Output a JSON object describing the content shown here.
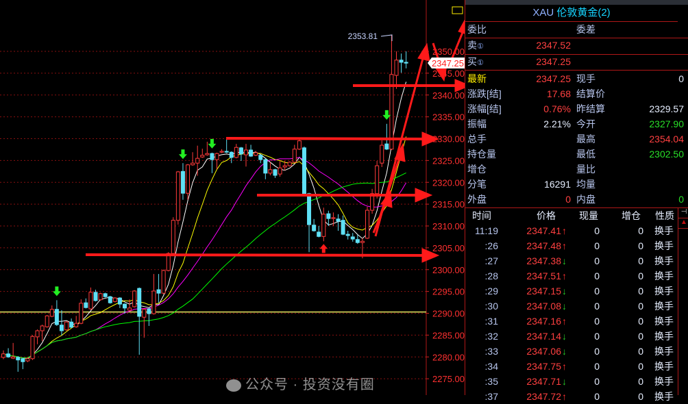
{
  "chart": {
    "price_axis": {
      "min": 2275,
      "max": 2350,
      "step": 5,
      "labels": [
        "2350.00",
        "2345.00",
        "2340.00",
        "2335.00",
        "2330.00",
        "2325.00",
        "2320.00",
        "2315.00",
        "2310.00",
        "2305.00",
        "2300.00",
        "2295.00",
        "2290.00",
        "2285.00",
        "2280.00",
        "2275.00"
      ]
    },
    "current_price_tag": "2347.25",
    "high_label": "2353.81",
    "horizontal_line_price": 2290.3,
    "colors": {
      "up": "#ff3b3b",
      "down": "#5fe0f5",
      "grid": "#8a1010",
      "ma5": "#ffffff",
      "ma10": "#ffff00",
      "ma20": "#ff00ff",
      "ma40": "#00ff00",
      "annotation": "#ff1a1a",
      "signal_buy": "#ff1a1a",
      "signal_sell": "#22ee22"
    },
    "candles": [
      [
        2279.9,
        2281.5,
        2279.5,
        2280.7
      ],
      [
        2280.7,
        2282.0,
        2279.8,
        2280.0
      ],
      [
        2279.7,
        2283.2,
        2279.5,
        2280.0
      ],
      [
        2279.9,
        2280.2,
        2276.6,
        2279.3
      ],
      [
        2279.6,
        2279.8,
        2277.2,
        2278.9
      ],
      [
        2279.1,
        2279.9,
        2278.8,
        2279.6
      ],
      [
        2279.6,
        2285.0,
        2279.3,
        2284.7
      ],
      [
        2284.6,
        2286.3,
        2282.9,
        2286.0
      ],
      [
        2286.0,
        2287.4,
        2283.6,
        2287.1
      ],
      [
        2286.9,
        2289.6,
        2286.7,
        2289.4
      ],
      [
        2289.3,
        2291.8,
        2289.1,
        2290.9
      ],
      [
        2290.9,
        2293.0,
        2287.1,
        2287.4
      ],
      [
        2287.3,
        2290.7,
        2284.9,
        2286.0
      ],
      [
        2286.2,
        2288.2,
        2286.0,
        2288.0
      ],
      [
        2288.0,
        2288.8,
        2286.6,
        2286.8
      ],
      [
        2286.9,
        2289.4,
        2286.7,
        2287.7
      ],
      [
        2287.7,
        2293.2,
        2287.5,
        2292.3
      ],
      [
        2292.4,
        2293.4,
        2291.1,
        2291.3
      ],
      [
        2291.0,
        2295.9,
        2290.8,
        2294.8
      ],
      [
        2294.8,
        2295.4,
        2292.7,
        2292.9
      ],
      [
        2293.1,
        2294.7,
        2292.9,
        2294.5
      ],
      [
        2294.5,
        2294.7,
        2293.6,
        2293.8
      ],
      [
        2293.8,
        2294.0,
        2292.2,
        2292.4
      ],
      [
        2292.7,
        2293.7,
        2292.5,
        2293.5
      ],
      [
        2293.5,
        2293.7,
        2291.2,
        2292.1
      ],
      [
        2292.1,
        2292.3,
        2289.9,
        2291.2
      ],
      [
        2290.7,
        2293.2,
        2290.5,
        2291.2
      ],
      [
        2291.5,
        2295.3,
        2291.3,
        2295.1
      ],
      [
        2295.7,
        2295.9,
        2280.5,
        2289.3
      ],
      [
        2289.1,
        2291.1,
        2284.4,
        2290.9
      ],
      [
        2291.0,
        2291.2,
        2287.1,
        2289.9
      ],
      [
        2289.9,
        2299.0,
        2289.7,
        2295.1
      ],
      [
        2295.4,
        2299.0,
        2292.4,
        2294.6
      ],
      [
        2294.6,
        2300.0,
        2294.4,
        2299.8
      ],
      [
        2299.8,
        2304.0,
        2299.6,
        2303.7
      ],
      [
        2303.7,
        2312.0,
        2303.5,
        2311.3
      ],
      [
        2311.3,
        2322.6,
        2310.3,
        2322.4
      ],
      [
        2322.5,
        2324.4,
        2316.0,
        2317.5
      ],
      [
        2317.5,
        2324.2,
        2316.0,
        2324.0
      ],
      [
        2324.0,
        2326.9,
        2323.8,
        2324.4
      ],
      [
        2324.4,
        2328.4,
        2321.5,
        2325.5
      ],
      [
        2325.8,
        2327.7,
        2325.6,
        2326.2
      ],
      [
        2326.3,
        2329.3,
        2326.1,
        2326.6
      ],
      [
        2326.6,
        2326.8,
        2322.1,
        2325.2
      ],
      [
        2325.2,
        2326.8,
        2323.0,
        2326.6
      ],
      [
        2326.9,
        2327.6,
        2326.7,
        2327.1
      ],
      [
        2327.1,
        2330.1,
        2326.7,
        2326.9
      ],
      [
        2326.9,
        2327.1,
        2324.4,
        2325.7
      ],
      [
        2325.7,
        2328.8,
        2325.5,
        2328.0
      ],
      [
        2327.9,
        2328.1,
        2324.9,
        2326.5
      ],
      [
        2326.3,
        2328.8,
        2323.6,
        2327.4
      ],
      [
        2327.4,
        2328.6,
        2325.8,
        2326.0
      ],
      [
        2326.2,
        2327.2,
        2326.0,
        2326.8
      ],
      [
        2326.2,
        2326.4,
        2324.4,
        2325.2
      ],
      [
        2325.2,
        2325.4,
        2320.7,
        2322.1
      ],
      [
        2322.1,
        2324.6,
        2321.6,
        2322.9
      ],
      [
        2322.9,
        2323.1,
        2321.0,
        2321.6
      ],
      [
        2321.9,
        2324.9,
        2321.3,
        2323.3
      ],
      [
        2323.5,
        2324.9,
        2322.7,
        2323.8
      ],
      [
        2323.8,
        2324.8,
        2323.6,
        2324.6
      ],
      [
        2324.6,
        2328.6,
        2324.4,
        2327.6
      ],
      [
        2327.6,
        2329.9,
        2327.4,
        2329.5
      ],
      [
        2327.9,
        2328.2,
        2316.9,
        2317.1
      ],
      [
        2317.4,
        2317.6,
        2304.0,
        2310.3
      ],
      [
        2310.2,
        2311.6,
        2308.7,
        2308.9
      ],
      [
        2308.6,
        2310.0,
        2307.4,
        2307.6
      ],
      [
        2307.6,
        2314.2,
        2306.5,
        2312.7
      ],
      [
        2312.8,
        2313.5,
        2310.0,
        2311.7
      ],
      [
        2311.7,
        2313.1,
        2310.0,
        2311.9
      ],
      [
        2311.6,
        2312.7,
        2308.9,
        2311.1
      ],
      [
        2311.3,
        2312.4,
        2307.9,
        2308.1
      ],
      [
        2308.1,
        2308.9,
        2306.9,
        2307.8
      ],
      [
        2307.5,
        2308.4,
        2306.4,
        2307.0
      ],
      [
        2306.9,
        2308.0,
        2305.9,
        2306.2
      ],
      [
        2306.2,
        2307.2,
        2302.6,
        2306.5
      ],
      [
        2307.2,
        2314.4,
        2307.0,
        2313.6
      ],
      [
        2313.6,
        2318.5,
        2312.8,
        2317.4
      ],
      [
        2317.4,
        2324.9,
        2316.3,
        2323.8
      ],
      [
        2324.4,
        2329.6,
        2323.5,
        2328.5
      ],
      [
        2328.8,
        2333.4,
        2327.4,
        2327.6
      ],
      [
        2327.6,
        2353.8,
        2327.4,
        2344.7
      ],
      [
        2344.5,
        2350.0,
        2341.4,
        2348.0
      ],
      [
        2348.0,
        2349.5,
        2345.1,
        2347.5
      ],
      [
        2347.5,
        2350.0,
        2346.1,
        2347.3
      ]
    ],
    "sell_signals_at_candle": [
      11,
      37,
      43,
      79
    ],
    "buy_signals_at_candle": [
      66
    ]
  },
  "quote": {
    "title_code": "XAU",
    "title_name": "伦敦黄金(2)",
    "wei_bi_label": "委比",
    "wei_cha_label": "委差",
    "ask_label": "卖",
    "ask_level": "①",
    "ask_price": "2347.52",
    "bid_label": "买",
    "bid_level": "①",
    "bid_price": "2347.25",
    "fields": [
      {
        "l1": "最新",
        "v1": "2347.25",
        "c1": "red",
        "l2": "现手",
        "v2": "0",
        "c2": "white"
      },
      {
        "l1": "涨跌[结]",
        "v1": "17.68",
        "c1": "red",
        "l2": "结算价",
        "v2": "",
        "c2": "white"
      },
      {
        "l1": "涨幅[结]",
        "v1": "0.76%",
        "c1": "red",
        "l2": "昨结算",
        "v2": "2329.57",
        "c2": "white"
      },
      {
        "l1": "振幅",
        "v1": "2.21%",
        "c1": "white",
        "l2": "今开",
        "v2": "2327.90",
        "c2": "green"
      },
      {
        "l1": "总手",
        "v1": "",
        "c1": "white",
        "l2": "最高",
        "v2": "2354.04",
        "c2": "red"
      },
      {
        "l1": "持仓量",
        "v1": "",
        "c1": "white",
        "l2": "最低",
        "v2": "2302.50",
        "c2": "green"
      },
      {
        "l1": "增仓",
        "v1": "",
        "c1": "white",
        "l2": "量比",
        "v2": "",
        "c2": "white"
      },
      {
        "l1": "分笔",
        "v1": "16291",
        "c1": "white",
        "l2": "均量",
        "v2": "",
        "c2": "white"
      },
      {
        "l1": "外盘",
        "v1": "0",
        "c1": "red",
        "l2": "内盘",
        "v2": "0",
        "c2": "green"
      }
    ]
  },
  "ticks": {
    "headers": {
      "time": "时间",
      "price": "价格",
      "volume": "现量",
      "oi_change": "增仓",
      "type": "性质"
    },
    "rows": [
      {
        "time": "11:19",
        "price": "2347.41",
        "dir": "↑",
        "volume": "0",
        "oi_change": "0",
        "type": "换手"
      },
      {
        "time": ":26",
        "price": "2347.48",
        "dir": "↑",
        "volume": "0",
        "oi_change": "0",
        "type": "换手"
      },
      {
        "time": ":27",
        "price": "2347.38",
        "dir": "↓",
        "volume": "0",
        "oi_change": "0",
        "type": "换手"
      },
      {
        "time": ":28",
        "price": "2347.51",
        "dir": "↑",
        "volume": "0",
        "oi_change": "0",
        "type": "换手"
      },
      {
        "time": ":29",
        "price": "2347.15",
        "dir": "↓",
        "volume": "0",
        "oi_change": "0",
        "type": "换手"
      },
      {
        "time": ":30",
        "price": "2347.08",
        "dir": "↓",
        "volume": "0",
        "oi_change": "0",
        "type": "换手"
      },
      {
        "time": ":31",
        "price": "2347.16",
        "dir": "↑",
        "volume": "0",
        "oi_change": "0",
        "type": "换手"
      },
      {
        "time": ":32",
        "price": "2347.14",
        "dir": "↓",
        "volume": "0",
        "oi_change": "0",
        "type": "换手"
      },
      {
        "time": ":33",
        "price": "2347.06",
        "dir": "↓",
        "volume": "0",
        "oi_change": "0",
        "type": "换手"
      },
      {
        "time": ":34",
        "price": "2347.75",
        "dir": "↑",
        "volume": "0",
        "oi_change": "0",
        "type": "换手"
      },
      {
        "time": ":35",
        "price": "2347.71",
        "dir": "↓",
        "volume": "0",
        "oi_change": "0",
        "type": "换手"
      },
      {
        "time": ":37",
        "price": "2347.72",
        "dir": "↑",
        "volume": "0",
        "oi_change": "0",
        "type": "换手"
      }
    ]
  },
  "watermark": "公众号 · 投资没有圈"
}
